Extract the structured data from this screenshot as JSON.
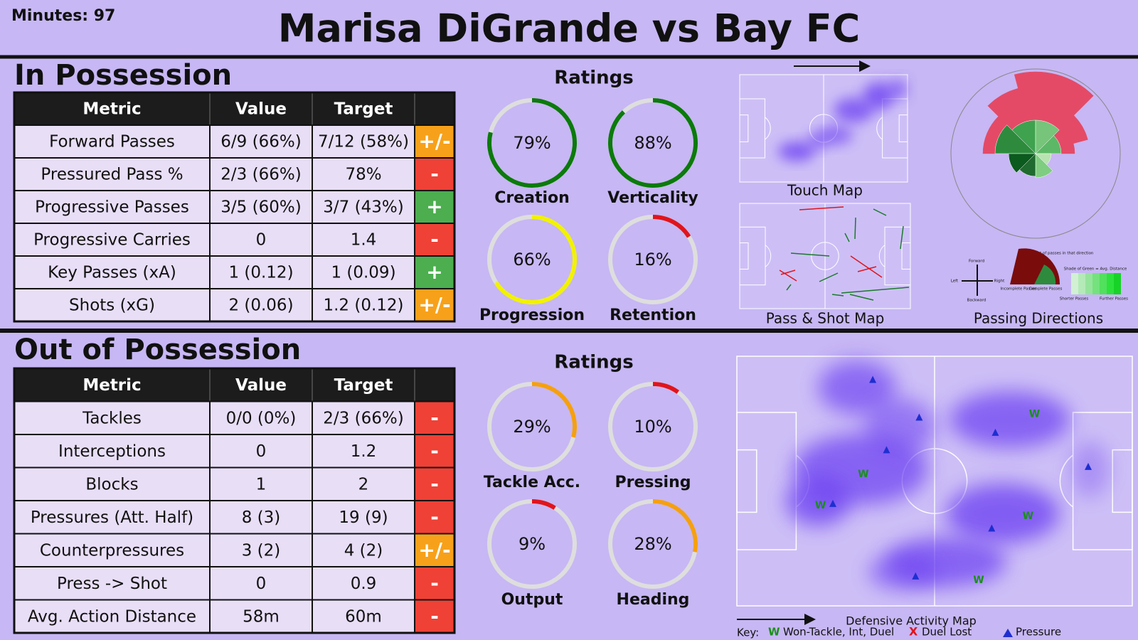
{
  "header": {
    "minutes": "Minutes: 97",
    "title": "Marisa DiGrande vs Bay FC"
  },
  "in_possession": {
    "title": "In Possession",
    "columns": [
      "Metric",
      "Value",
      "Target"
    ],
    "rows": [
      [
        "Forward Passes",
        "6/9 (66%)",
        "7/12 (58%)",
        "+/-"
      ],
      [
        "Pressured Pass %",
        "2/3 (66%)",
        "78%",
        "-"
      ],
      [
        "Progressive Passes",
        "3/5 (60%)",
        "3/7 (43%)",
        "+"
      ],
      [
        "Progressive Carries",
        "0",
        "1.4",
        "-"
      ],
      [
        "Key Passes (xA)",
        "1 (0.12)",
        "1 (0.09)",
        "+"
      ],
      [
        "Shots (xG)",
        "2 (0.06)",
        "1.2 (0.12)",
        "+/-"
      ]
    ],
    "status_colors": [
      "#f7a11a",
      "#ef4136",
      "#4cae4f",
      "#ef4136",
      "#4cae4f",
      "#f7a11a"
    ],
    "ratings": {
      "title": "Ratings",
      "labels": [
        "Creation",
        "Verticality",
        "Progression",
        "Retention"
      ],
      "values": [
        79,
        88,
        66,
        16
      ],
      "value_labels": [
        "79%",
        "88%",
        "66%",
        "16%"
      ],
      "colors": [
        "#0b7a0b",
        "#0b7a0b",
        "#f2f200",
        "#e0141c"
      ]
    },
    "touch_map": {
      "caption": "Touch Map"
    },
    "pass_map": {
      "caption": "Pass & Shot Map"
    },
    "passing_directions": {
      "caption": "Passing Directions",
      "legend": [
        "Forward",
        "Backward",
        "Left",
        "Right",
        "Incomplete Passes",
        "Complete Passes",
        "Amount of passes in that direction",
        "Shade of Green = Avg. Distance",
        "Shorter Passes",
        "Further Passes"
      ]
    }
  },
  "out_of_possession": {
    "title": "Out of Possession",
    "columns": [
      "Metric",
      "Value",
      "Target"
    ],
    "rows": [
      [
        "Tackles",
        "0/0 (0%)",
        "2/3 (66%)",
        "-"
      ],
      [
        "Interceptions",
        "0",
        "1.2",
        "-"
      ],
      [
        "Blocks",
        "1",
        "2",
        "-"
      ],
      [
        "Pressures (Att. Half)",
        "8 (3)",
        "19 (9)",
        "-"
      ],
      [
        "Counterpressures",
        "3 (2)",
        "4 (2)",
        "+/-"
      ],
      [
        "Press -> Shot",
        "0",
        "0.9",
        "-"
      ],
      [
        "Avg. Action Distance",
        "58m",
        "60m",
        "-"
      ]
    ],
    "status_colors": [
      "#ef4136",
      "#ef4136",
      "#ef4136",
      "#ef4136",
      "#f7a11a",
      "#ef4136",
      "#ef4136"
    ],
    "ratings": {
      "title": "Ratings",
      "labels": [
        "Tackle Acc.",
        "Pressing",
        "Output",
        "Heading"
      ],
      "values": [
        29,
        10,
        9,
        28
      ],
      "value_labels": [
        "29%",
        "10%",
        "9%",
        "28%"
      ],
      "colors": [
        "#f5a00f",
        "#e0141c",
        "#e0141c",
        "#f5a00f"
      ]
    },
    "defensive_map": {
      "caption": "Defensive Activity Map",
      "key_title": "Key:",
      "key": [
        {
          "symbol": "W",
          "label": "Won-Tackle, Int, Duel"
        },
        {
          "symbol": "X",
          "label": "Duel Lost"
        },
        {
          "label": "Pressure"
        }
      ]
    }
  }
}
